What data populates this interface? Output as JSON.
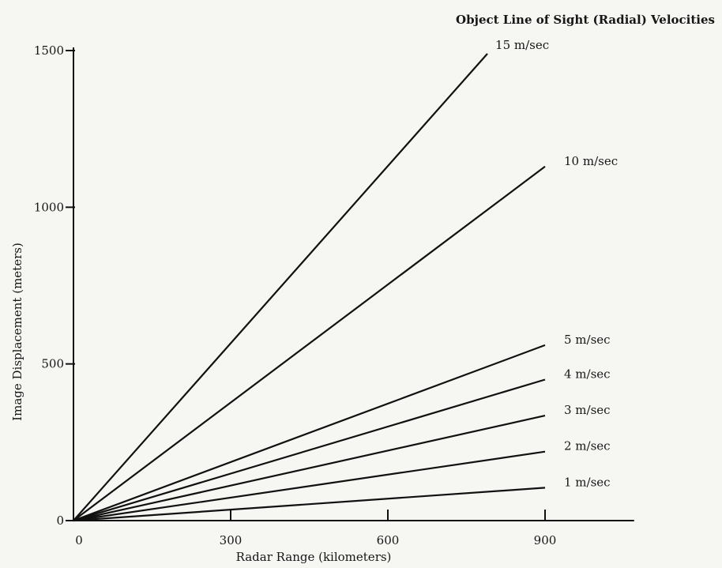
{
  "chart_data": {
    "type": "line",
    "title": "",
    "legend_title": "Object Line of Sight (Radial) Velocities",
    "xlabel": "Radar Range (kilometers)",
    "ylabel": "Image Displacement (meters)",
    "xlim": [
      0,
      1070
    ],
    "ylim": [
      0,
      1500
    ],
    "xticks": [
      0,
      300,
      600,
      900
    ],
    "yticks": [
      0,
      500,
      1000,
      1500
    ],
    "grid": false,
    "legend_placement": "labels at line ends",
    "colors": {
      "line": "#111111",
      "axis": "#111111",
      "background": "#f6f6f3"
    },
    "series": [
      {
        "name": "15 m/sec",
        "x": [
          0,
          790
        ],
        "y": [
          0,
          1490
        ]
      },
      {
        "name": "10 m/sec",
        "x": [
          0,
          900
        ],
        "y": [
          0,
          1130
        ]
      },
      {
        "name": "5 m/sec",
        "x": [
          0,
          900
        ],
        "y": [
          0,
          560
        ]
      },
      {
        "name": "4 m/sec",
        "x": [
          0,
          900
        ],
        "y": [
          0,
          450
        ]
      },
      {
        "name": "3 m/sec",
        "x": [
          0,
          900
        ],
        "y": [
          0,
          335
        ]
      },
      {
        "name": "2 m/sec",
        "x": [
          0,
          900
        ],
        "y": [
          0,
          220
        ]
      },
      {
        "name": "1 m/sec",
        "x": [
          0,
          900
        ],
        "y": [
          0,
          105
        ]
      }
    ]
  }
}
